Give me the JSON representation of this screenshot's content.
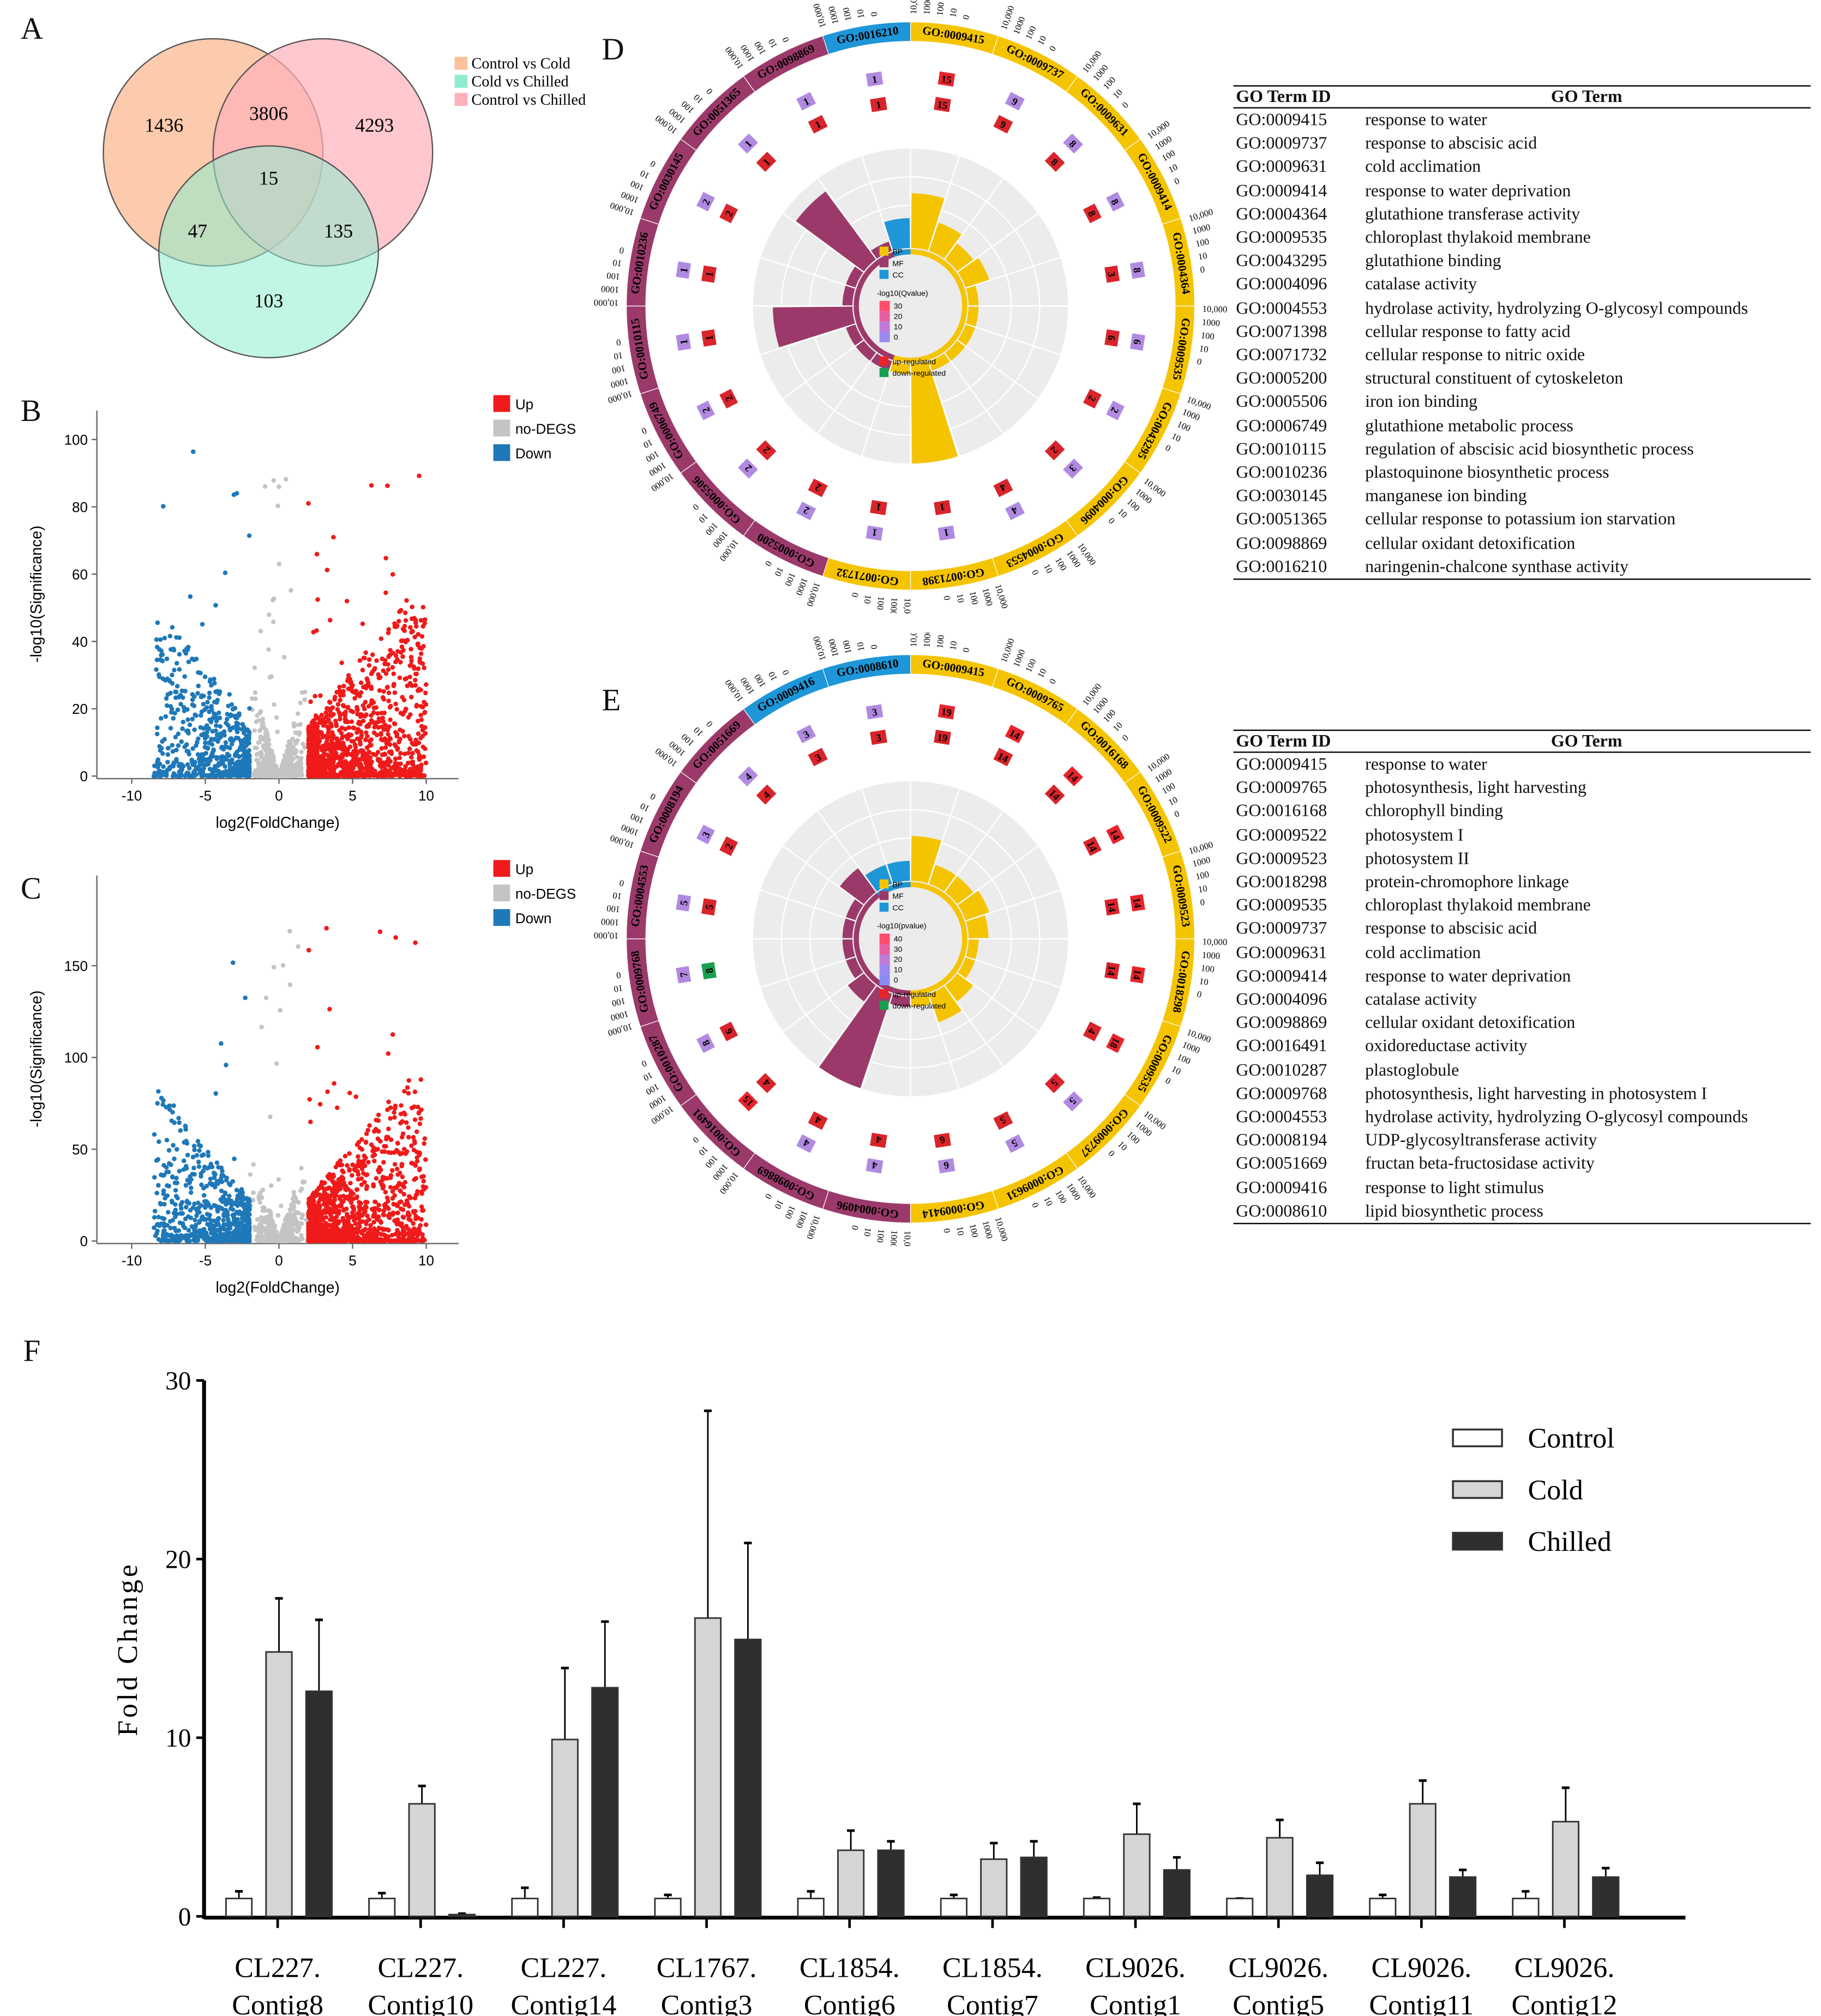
{
  "panels": {
    "A": "A",
    "B": "B",
    "C": "C",
    "D": "D",
    "E": "E",
    "F": "F"
  },
  "chart_data": [
    {
      "panel": "A",
      "type": "venn",
      "sets": [
        {
          "name": "Control vs Cold",
          "color": "#fbc19d"
        },
        {
          "name": "Cold vs Chilled",
          "color": "#8eecd0"
        },
        {
          "name": "Control vs Chilled",
          "color": "#ffb1bb"
        }
      ],
      "regions": {
        "only_control_cold": "1436",
        "control_cold_and_control_chilled": "3806",
        "only_control_chilled": "4293",
        "all_three": "15",
        "control_cold_and_cold_chilled": "47",
        "cold_chilled_and_control_chilled": "135",
        "only_cold_chilled": "103"
      }
    },
    {
      "panel": "B",
      "type": "scatter",
      "xlabel": "log2(FoldChange)",
      "ylabel": "-log10(Significance)",
      "xlim": [
        -12,
        12.5
      ],
      "ylim": [
        0,
        105
      ],
      "xticks": [
        "-10",
        "-5",
        "0",
        "5",
        "10"
      ],
      "yticks": [
        "0",
        "20",
        "40",
        "60",
        "80",
        "100"
      ],
      "legend": [
        {
          "name": "Up",
          "color": "#f01a1a"
        },
        {
          "name": "no-DEGS",
          "color": "#c4c4c4"
        },
        {
          "name": "Down",
          "color": "#1f78b8"
        }
      ],
      "legend_position": "right"
    },
    {
      "panel": "C",
      "type": "scatter",
      "xlabel": "log2(FoldChange)",
      "ylabel": "-log10(Significance)",
      "xlim": [
        -12,
        12.5
      ],
      "ylim": [
        0,
        180
      ],
      "xticks": [
        "-10",
        "-5",
        "0",
        "5",
        "10"
      ],
      "yticks": [
        "0",
        "50",
        "100",
        "150"
      ],
      "legend": [
        {
          "name": "Up",
          "color": "#f01a1a"
        },
        {
          "name": "no-DEGS",
          "color": "#c4c4c4"
        },
        {
          "name": "Down",
          "color": "#1f78b8"
        }
      ],
      "legend_position": "right"
    },
    {
      "panel": "D",
      "type": "circular-go",
      "scale_labels": [
        "10,000",
        "1000",
        "100",
        "10",
        "0"
      ],
      "legend": {
        "categories": [
          "BP",
          "MF",
          "CC"
        ],
        "colors": [
          "#f5c400",
          "#9b3a6a",
          "#1e96d8"
        ],
        "qvalue_title": "-log10(Qvalue)",
        "qvalue_ticks": [
          "30",
          "20",
          "10",
          "0"
        ],
        "reg": [
          "up-regulated",
          "down-regulated"
        ]
      },
      "terms": [
        {
          "id": "GO:0009415",
          "cat": 0,
          "up": 15,
          "down": 15,
          "bar": 0.55
        },
        {
          "id": "GO:0009737",
          "cat": 0,
          "up": 9,
          "down": 9,
          "bar": 0.3
        },
        {
          "id": "GO:0009631",
          "cat": 0,
          "up": 8,
          "down": 8,
          "bar": 0.2
        },
        {
          "id": "GO:0009414",
          "cat": 0,
          "up": 8,
          "down": 8,
          "bar": 0.25
        },
        {
          "id": "GO:0004364",
          "cat": 0,
          "up": 8,
          "down": 3,
          "bar": 0.1
        },
        {
          "id": "GO:0009535",
          "cat": 0,
          "up": 6,
          "down": 6,
          "bar": 0.1
        },
        {
          "id": "GO:0043295",
          "cat": 0,
          "up": 2,
          "down": 2,
          "bar": 0.1
        },
        {
          "id": "GO:0004096",
          "cat": 0,
          "up": 3,
          "down": 2,
          "bar": 0.1
        },
        {
          "id": "GO:0004553",
          "cat": 0,
          "up": 4,
          "down": 4,
          "bar": 0.1
        },
        {
          "id": "GO:0071398",
          "cat": 0,
          "up": 1,
          "down": 1,
          "bar": 1.0
        },
        {
          "id": "GO:0071732",
          "cat": 0,
          "up": 1,
          "down": 1,
          "bar": 0.1
        },
        {
          "id": "GO:0005200",
          "cat": 1,
          "up": 2,
          "down": 2,
          "bar": 0.1
        },
        {
          "id": "GO:0005506",
          "cat": 1,
          "up": 2,
          "down": 2,
          "bar": 0.1
        },
        {
          "id": "GO:0006749",
          "cat": 1,
          "up": 2,
          "down": 2,
          "bar": 0.1
        },
        {
          "id": "GO:0010115",
          "cat": 1,
          "up": 1,
          "down": 1,
          "bar": 0.8
        },
        {
          "id": "GO:0010236",
          "cat": 1,
          "up": 1,
          "down": 1,
          "bar": 0.1
        },
        {
          "id": "GO:0030145",
          "cat": 1,
          "up": 2,
          "down": 2,
          "bar": 0.1
        },
        {
          "id": "GO:0051365",
          "cat": 1,
          "up": 1,
          "down": 1,
          "bar": 0.85
        },
        {
          "id": "GO:0098869",
          "cat": 1,
          "up": 1,
          "down": 1,
          "bar": 0.1
        },
        {
          "id": "GO:0016210",
          "cat": 2,
          "up": 1,
          "down": 1,
          "bar": 0.3
        }
      ]
    },
    {
      "panel": "E",
      "type": "circular-go",
      "scale_labels": [
        "10,000",
        "1000",
        "100",
        "10",
        "0"
      ],
      "legend": {
        "categories": [
          "BP",
          "MF",
          "CC"
        ],
        "colors": [
          "#f5c400",
          "#9b3a6a",
          "#1e96d8"
        ],
        "qvalue_title": "-log10(pvalue)",
        "qvalue_ticks": [
          "40",
          "30",
          "20",
          "10",
          "0"
        ],
        "reg": [
          "up-regulated",
          "down-regulated"
        ]
      },
      "terms": [
        {
          "id": "GO:0009415",
          "cat": 0,
          "up": 19,
          "down": 19,
          "bar": 0.45
        },
        {
          "id": "GO:0009765",
          "cat": 0,
          "up": 14,
          "down": 14,
          "bar": 0.2
        },
        {
          "id": "GO:0016168",
          "cat": 0,
          "up": 14,
          "down": 14,
          "bar": 0.2
        },
        {
          "id": "GO:0009522",
          "cat": 0,
          "up": 14,
          "down": 14,
          "bar": 0.25
        },
        {
          "id": "GO:0009523",
          "cat": 0,
          "up": 14,
          "down": 14,
          "bar": 0.2
        },
        {
          "id": "GO:0018298",
          "cat": 0,
          "up": 14,
          "down": 14,
          "bar": 0.1
        },
        {
          "id": "GO:0009535",
          "cat": 0,
          "up": 18,
          "down": 4,
          "bar": 0.1
        },
        {
          "id": "GO:0009737",
          "cat": 0,
          "up": 5,
          "down": 5,
          "bar": 0.2
        },
        {
          "id": "GO:0009631",
          "cat": 0,
          "up": 5,
          "down": 5,
          "bar": 0.3
        },
        {
          "id": "GO:0009414",
          "cat": 0,
          "up": 6,
          "down": 6,
          "bar": 0.1
        },
        {
          "id": "GO:0004096",
          "cat": 1,
          "up": 4,
          "down": 4,
          "bar": 0.1
        },
        {
          "id": "GO:0098869",
          "cat": 1,
          "up": 4,
          "down": 4,
          "bar": 1.0
        },
        {
          "id": "GO:0016491",
          "cat": 1,
          "up": 15,
          "down": 4,
          "bar": 0.2
        },
        {
          "id": "GO:0010287",
          "cat": 1,
          "up": 8,
          "down": 6,
          "bar": 0.1
        },
        {
          "id": "GO:0009768",
          "cat": 1,
          "up": 7,
          "down": 8,
          "bar": 0.1
        },
        {
          "id": "GO:0004553",
          "cat": 1,
          "up": 5,
          "down": 5,
          "bar": 0.1
        },
        {
          "id": "GO:0008194",
          "cat": 1,
          "up": 3,
          "down": 2,
          "bar": 0.1
        },
        {
          "id": "GO:0051669",
          "cat": 1,
          "up": 4,
          "down": 4,
          "bar": 0.3
        },
        {
          "id": "GO:0009416",
          "cat": 2,
          "up": 3,
          "down": 3,
          "bar": 0.2
        },
        {
          "id": "GO:0008610",
          "cat": 2,
          "up": 3,
          "down": 3,
          "bar": 0.2
        }
      ]
    },
    {
      "panel": "F",
      "type": "bar",
      "ylabel": "Fold Change",
      "ylim": [
        0,
        30
      ],
      "yticks": [
        "0",
        "10",
        "20",
        "30"
      ],
      "categories": [
        [
          "CL227.",
          "Contig8"
        ],
        [
          "CL227.",
          "Contig10"
        ],
        [
          "CL227.",
          "Contig14"
        ],
        [
          "CL1767.",
          "Contig3"
        ],
        [
          "CL1854.",
          "Contig6"
        ],
        [
          "CL1854.",
          "Contig7"
        ],
        [
          "CL9026.",
          "Contig1"
        ],
        [
          "CL9026.",
          "Contig5"
        ],
        [
          "CL9026.",
          "Contig11"
        ],
        [
          "CL9026.",
          "Contig12"
        ]
      ],
      "series": [
        {
          "name": "Control",
          "color": "#ffffff",
          "values": [
            1,
            1,
            1,
            1,
            1,
            1,
            1,
            1,
            1,
            1
          ],
          "err_top": [
            1.4,
            1.3,
            1.6,
            1.2,
            1.4,
            1.2,
            1.05,
            1.0,
            1.2,
            1.4
          ]
        },
        {
          "name": "Cold",
          "color": "#d5d5d5",
          "values": [
            14.8,
            6.3,
            9.9,
            16.7,
            3.7,
            3.2,
            4.6,
            4.4,
            6.3,
            5.3
          ],
          "err_top": [
            17.8,
            7.3,
            13.9,
            28.3,
            4.8,
            4.1,
            6.3,
            5.4,
            7.6,
            7.2
          ]
        },
        {
          "name": "Chilled",
          "color": "#2e2e2e",
          "values": [
            12.6,
            0.1,
            12.8,
            15.5,
            3.7,
            3.3,
            2.6,
            2.3,
            2.2,
            2.2
          ],
          "err_top": [
            16.6,
            0.15,
            16.5,
            20.9,
            4.2,
            4.2,
            3.3,
            3.0,
            2.6,
            2.7
          ]
        }
      ],
      "legend_position": "top-right"
    }
  ],
  "tables": {
    "D": {
      "headers": [
        "GO Term ID",
        "GO Term"
      ],
      "rows": [
        [
          "GO:0009415",
          "response to water"
        ],
        [
          "GO:0009737",
          "response to abscisic acid"
        ],
        [
          "GO:0009631",
          "cold acclimation"
        ],
        [
          "GO:0009414",
          "response to water deprivation"
        ],
        [
          "GO:0004364",
          "glutathione transferase activity"
        ],
        [
          "GO:0009535",
          "chloroplast thylakoid membrane"
        ],
        [
          "GO:0043295",
          "glutathione binding"
        ],
        [
          "GO:0004096",
          "catalase activity"
        ],
        [
          "GO:0004553",
          "hydrolase activity, hydrolyzing O-glycosyl compounds"
        ],
        [
          "GO:0071398",
          "cellular response to fatty acid"
        ],
        [
          "GO:0071732",
          "cellular response to nitric oxide"
        ],
        [
          "GO:0005200",
          "structural constituent of cytoskeleton"
        ],
        [
          "GO:0005506",
          "iron ion binding"
        ],
        [
          "GO:0006749",
          "glutathione metabolic process"
        ],
        [
          "GO:0010115",
          "regulation of abscisic acid biosynthetic process"
        ],
        [
          "GO:0010236",
          "plastoquinone biosynthetic process"
        ],
        [
          "GO:0030145",
          "manganese ion binding"
        ],
        [
          "GO:0051365",
          "cellular response to potassium ion starvation"
        ],
        [
          "GO:0098869",
          "cellular oxidant detoxification"
        ],
        [
          "GO:0016210",
          "naringenin-chalcone synthase activity"
        ]
      ]
    },
    "E": {
      "headers": [
        "GO Term ID",
        "GO Term"
      ],
      "rows": [
        [
          "GO:0009415",
          "response to water"
        ],
        [
          "GO:0009765",
          "photosynthesis, light harvesting"
        ],
        [
          "GO:0016168",
          "chlorophyll binding"
        ],
        [
          "GO:0009522",
          "photosystem I"
        ],
        [
          "GO:0009523",
          "photosystem II"
        ],
        [
          "GO:0018298",
          "protein-chromophore linkage"
        ],
        [
          "GO:0009535",
          "chloroplast thylakoid membrane"
        ],
        [
          "GO:0009737",
          "response to abscisic acid"
        ],
        [
          "GO:0009631",
          "cold acclimation"
        ],
        [
          "GO:0009414",
          "response to water deprivation"
        ],
        [
          "GO:0004096",
          "catalase activity"
        ],
        [
          "GO:0098869",
          "cellular oxidant detoxification"
        ],
        [
          "GO:0016491",
          "oxidoreductase activity"
        ],
        [
          "GO:0010287",
          "plastoglobule"
        ],
        [
          "GO:0009768",
          "photosynthesis, light harvesting in photosystem I"
        ],
        [
          "GO:0004553",
          "hydrolase activity, hydrolyzing O-glycosyl compounds"
        ],
        [
          "GO:0008194",
          "UDP-glycosyltransferase activity"
        ],
        [
          "GO:0051669",
          "fructan beta-fructosidase activity"
        ],
        [
          "GO:0009416",
          "response to light stimulus"
        ],
        [
          "GO:0008610",
          "lipid biosynthetic process"
        ]
      ]
    }
  }
}
